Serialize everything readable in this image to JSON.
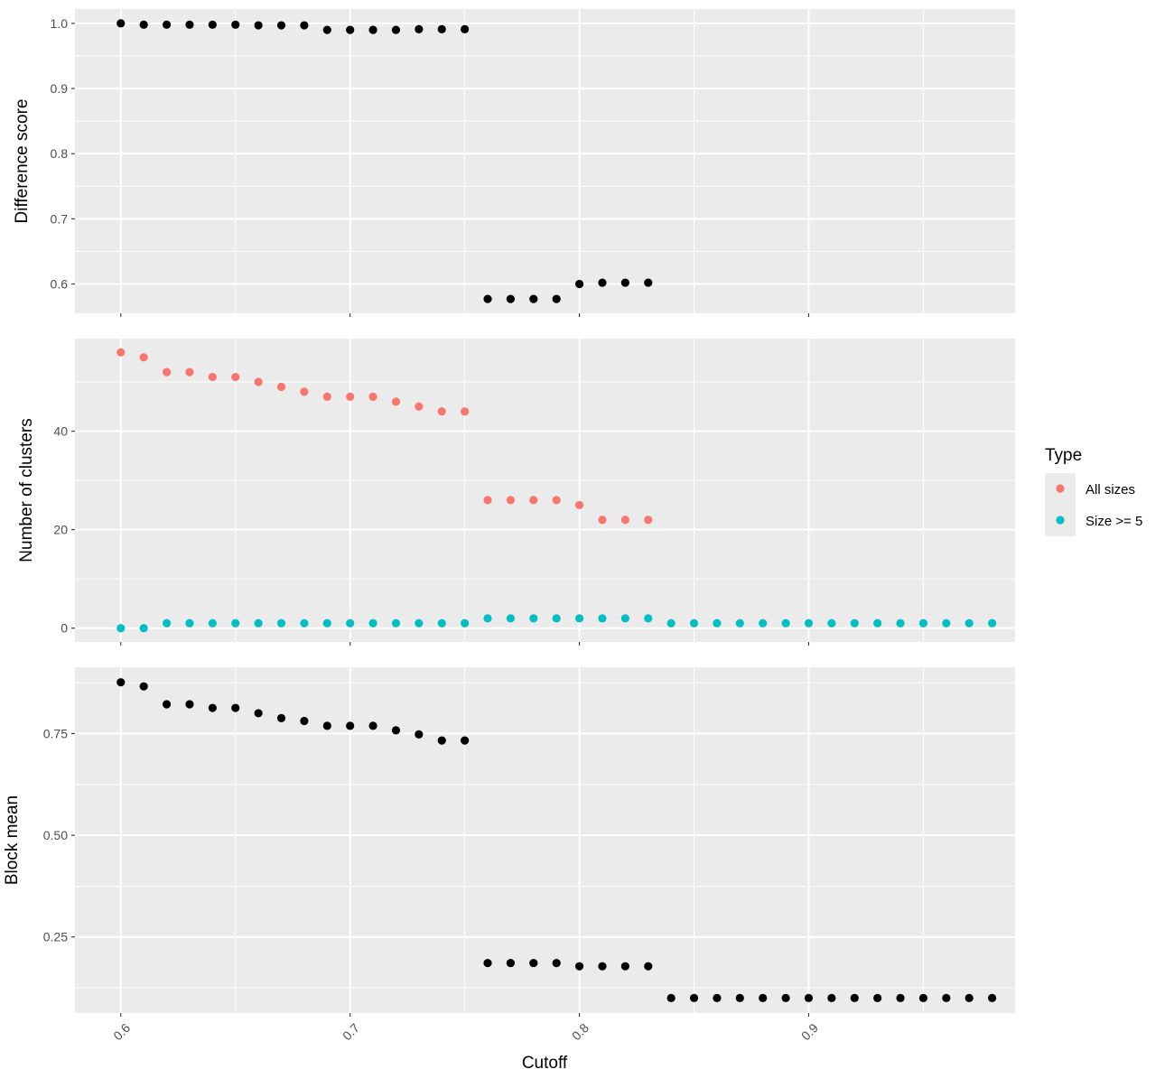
{
  "chart_data": [
    {
      "type": "scatter",
      "ylabel": "Difference score",
      "xlim": [
        0.58,
        0.99
      ],
      "ylim": [
        0.555,
        1.022
      ],
      "x_ticks": [
        0.6,
        0.7,
        0.8,
        0.9
      ],
      "y_ticks": [
        0.6,
        0.7,
        0.8,
        0.9,
        1.0
      ],
      "y_tick_labels": [
        "0.6",
        "0.7",
        "0.8",
        "0.9",
        "1.0"
      ],
      "series": [
        {
          "color": "#000000",
          "x": [
            0.6,
            0.61,
            0.62,
            0.63,
            0.64,
            0.65,
            0.66,
            0.67,
            0.68,
            0.69,
            0.7,
            0.71,
            0.72,
            0.73,
            0.74,
            0.75,
            0.76,
            0.77,
            0.78,
            0.79,
            0.8,
            0.81,
            0.82,
            0.83
          ],
          "y": [
            1.0,
            0.998,
            0.998,
            0.998,
            0.998,
            0.998,
            0.997,
            0.997,
            0.997,
            0.99,
            0.99,
            0.99,
            0.99,
            0.991,
            0.991,
            0.991,
            0.577,
            0.577,
            0.577,
            0.577,
            0.6,
            0.602,
            0.602,
            0.602
          ]
        }
      ]
    },
    {
      "type": "scatter",
      "ylabel": "Number of clusters",
      "xlim": [
        0.58,
        0.99
      ],
      "ylim": [
        -2.8,
        58.8
      ],
      "x_ticks": [
        0.6,
        0.7,
        0.8,
        0.9
      ],
      "y_ticks": [
        0,
        20,
        40
      ],
      "y_tick_labels": [
        "0",
        "20",
        "40"
      ],
      "series": [
        {
          "name": "All sizes",
          "color": "#F8766D",
          "x": [
            0.6,
            0.61,
            0.62,
            0.63,
            0.64,
            0.65,
            0.66,
            0.67,
            0.68,
            0.69,
            0.7,
            0.71,
            0.72,
            0.73,
            0.74,
            0.75,
            0.76,
            0.77,
            0.78,
            0.79,
            0.8,
            0.81,
            0.82,
            0.83
          ],
          "y": [
            56,
            55,
            52,
            52,
            51,
            51,
            50,
            49,
            48,
            47,
            47,
            47,
            46,
            45,
            44,
            44,
            26,
            26,
            26,
            26,
            25,
            22,
            22,
            22
          ]
        },
        {
          "name": "Size >= 5",
          "color": "#00BFC4",
          "x": [
            0.6,
            0.61,
            0.62,
            0.63,
            0.64,
            0.65,
            0.66,
            0.67,
            0.68,
            0.69,
            0.7,
            0.71,
            0.72,
            0.73,
            0.74,
            0.75,
            0.76,
            0.77,
            0.78,
            0.79,
            0.8,
            0.81,
            0.82,
            0.83,
            0.84,
            0.85,
            0.86,
            0.87,
            0.88,
            0.89,
            0.9,
            0.91,
            0.92,
            0.93,
            0.94,
            0.95,
            0.96,
            0.97,
            0.98
          ],
          "y": [
            0,
            0,
            1,
            1,
            1,
            1,
            1,
            1,
            1,
            1,
            1,
            1,
            1,
            1,
            1,
            1,
            2,
            2,
            2,
            2,
            2,
            2,
            2,
            2,
            1,
            1,
            1,
            1,
            1,
            1,
            1,
            1,
            1,
            1,
            1,
            1,
            1,
            1,
            1
          ]
        }
      ]
    },
    {
      "type": "scatter",
      "ylabel": "Block mean",
      "xlabel": "Cutoff",
      "xlim": [
        0.58,
        0.99
      ],
      "ylim": [
        0.063,
        0.913
      ],
      "x_ticks": [
        0.6,
        0.7,
        0.8,
        0.9
      ],
      "x_tick_labels": [
        "0.6",
        "0.7",
        "0.8",
        "0.9"
      ],
      "y_ticks": [
        0.25,
        0.5,
        0.75
      ],
      "y_tick_labels": [
        "0.25",
        "0.50",
        "0.75"
      ],
      "series": [
        {
          "color": "#000000",
          "x": [
            0.6,
            0.61,
            0.62,
            0.63,
            0.64,
            0.65,
            0.66,
            0.67,
            0.68,
            0.69,
            0.7,
            0.71,
            0.72,
            0.73,
            0.74,
            0.75,
            0.76,
            0.77,
            0.78,
            0.79,
            0.8,
            0.81,
            0.82,
            0.83,
            0.84,
            0.85,
            0.86,
            0.87,
            0.88,
            0.89,
            0.9,
            0.91,
            0.92,
            0.93,
            0.94,
            0.95,
            0.96,
            0.97,
            0.98
          ],
          "y": [
            0.876,
            0.866,
            0.822,
            0.822,
            0.813,
            0.813,
            0.8,
            0.788,
            0.781,
            0.769,
            0.769,
            0.769,
            0.758,
            0.748,
            0.733,
            0.733,
            0.186,
            0.186,
            0.186,
            0.186,
            0.178,
            0.178,
            0.178,
            0.178,
            0.1,
            0.1,
            0.1,
            0.1,
            0.1,
            0.1,
            0.1,
            0.1,
            0.1,
            0.1,
            0.1,
            0.1,
            0.1,
            0.1,
            0.1
          ]
        }
      ]
    }
  ],
  "legend": {
    "title": "Type",
    "placement": "right",
    "items": [
      {
        "label": "All sizes",
        "color": "#F8766D"
      },
      {
        "label": "Size >= 5",
        "color": "#00BFC4"
      }
    ]
  },
  "colors": {
    "panel_background": "#EBEBEB",
    "grid": "#FFFFFF",
    "tick_text": "#4D4D4D",
    "tick_mark": "#333333"
  }
}
